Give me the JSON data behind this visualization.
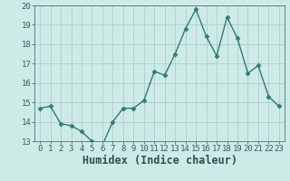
{
  "x": [
    0,
    1,
    2,
    3,
    4,
    5,
    6,
    7,
    8,
    9,
    10,
    11,
    12,
    13,
    14,
    15,
    16,
    17,
    18,
    19,
    20,
    21,
    22,
    23
  ],
  "y": [
    14.7,
    14.8,
    13.9,
    13.8,
    13.5,
    13.0,
    12.8,
    14.0,
    14.7,
    14.7,
    15.1,
    16.6,
    16.4,
    17.5,
    18.8,
    19.8,
    18.4,
    17.4,
    19.4,
    18.3,
    16.5,
    16.9,
    15.3,
    14.8
  ],
  "line_color": "#2e7d6e",
  "marker": "D",
  "marker_size": 2.5,
  "line_width": 1.0,
  "xlabel": "Humidex (Indice chaleur)",
  "ylim": [
    13,
    20
  ],
  "xlim": [
    -0.5,
    23.5
  ],
  "yticks": [
    13,
    14,
    15,
    16,
    17,
    18,
    19,
    20
  ],
  "xticks": [
    0,
    1,
    2,
    3,
    4,
    5,
    6,
    7,
    8,
    9,
    10,
    11,
    12,
    13,
    14,
    15,
    16,
    17,
    18,
    19,
    20,
    21,
    22,
    23
  ],
  "bg_color": "#ceeae7",
  "grid_color": "#aacfcc",
  "tick_label_fontsize": 6.5,
  "xlabel_fontsize": 8.5
}
